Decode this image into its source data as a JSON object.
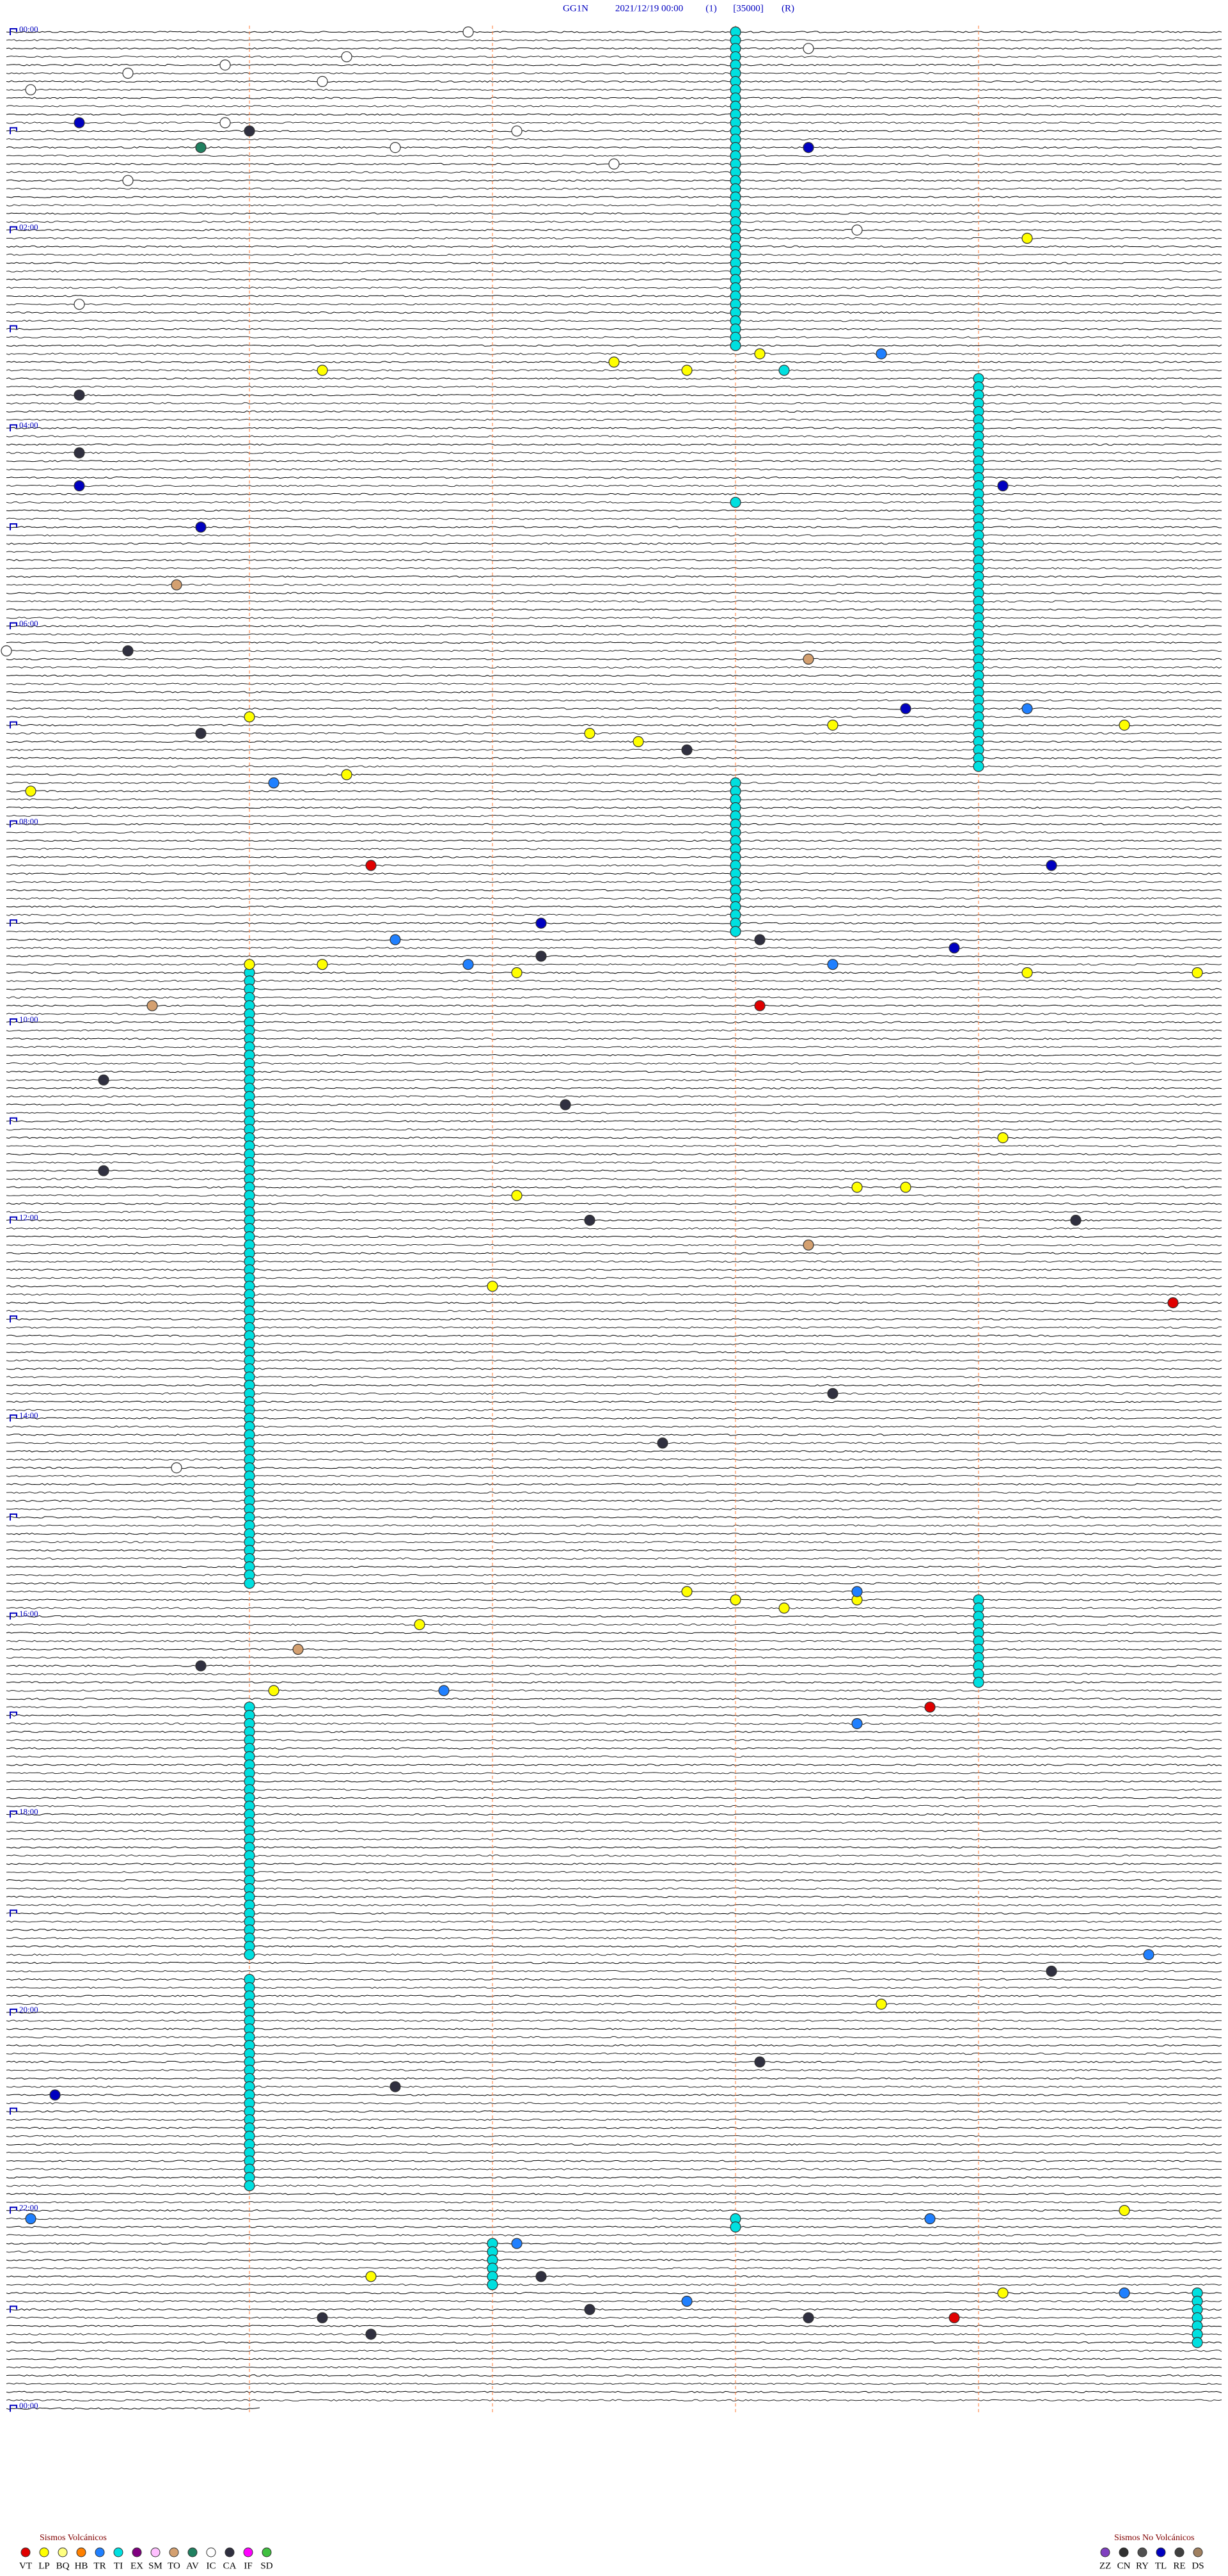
{
  "header": {
    "station": "GG1N",
    "datetime": "2021/12/19 00:00",
    "channel": "(1)",
    "scale": "[35000]",
    "mode": "(R)"
  },
  "hour_labels": [
    "00:00",
    "02:00",
    "04:00",
    "06:00",
    "08:00",
    "10:00",
    "12:00",
    "14:00",
    "16:00",
    "18:00",
    "20:00",
    "22:00",
    "00:00"
  ],
  "legend": {
    "volcanic": {
      "title": "Sismos Volcánicos",
      "items": [
        {
          "code": "VT",
          "color": "#e00000"
        },
        {
          "code": "LP",
          "color": "#ffff00"
        },
        {
          "code": "BQ",
          "color": "#ffff80"
        },
        {
          "code": "HB",
          "color": "#ff8000"
        },
        {
          "code": "TR",
          "color": "#2080ff"
        },
        {
          "code": "TI",
          "color": "#00e0e0"
        },
        {
          "code": "EX",
          "color": "#800080"
        },
        {
          "code": "SM",
          "color": "#ffc0ff"
        },
        {
          "code": "TO",
          "color": "#d4a070"
        },
        {
          "code": "AV",
          "color": "#208060"
        },
        {
          "code": "IC",
          "color": "#ffffff"
        },
        {
          "code": "CA",
          "color": "#303040"
        },
        {
          "code": "IF",
          "color": "#ff00ff"
        },
        {
          "code": "SD",
          "color": "#40c040"
        }
      ]
    },
    "non_volcanic": {
      "title": "Sismos No Volcánicos",
      "items": [
        {
          "code": "ZZ",
          "color": "#8040c0"
        },
        {
          "code": "CN",
          "color": "#303030"
        },
        {
          "code": "RY",
          "color": "#505050"
        },
        {
          "code": "TL",
          "color": "#0000c0"
        },
        {
          "code": "RE",
          "color": "#404040"
        },
        {
          "code": "DS",
          "color": "#a08060"
        }
      ]
    }
  },
  "event_runs": [
    {
      "type": "TI",
      "start": 3,
      "count": 39
    },
    {
      "type": "TI",
      "start": 214,
      "count": 48
    },
    {
      "type": "TI",
      "start": 458,
      "count": 19
    },
    {
      "type": "TI",
      "start": 571,
      "count": 75
    },
    {
      "type": "TI",
      "start": 954,
      "count": 11
    },
    {
      "type": "TI",
      "start": 1016,
      "count": 31
    },
    {
      "type": "TI",
      "start": 1181,
      "count": 26
    },
    {
      "type": "TI",
      "start": 1342,
      "count": 6
    },
    {
      "type": "TI",
      "start": 1374.9,
      "count": 7
    },
    {
      "type": "TI",
      "start": 1328,
      "count": 2
    }
  ],
  "events": [
    {
      "t": 1.9,
      "type": "IC"
    },
    {
      "t": 13.3,
      "type": "IC"
    },
    {
      "t": 16.4,
      "type": "IC"
    },
    {
      "t": 20.9,
      "type": "IC"
    },
    {
      "t": 25.5,
      "type": "IC"
    },
    {
      "t": 31.3,
      "type": "IC"
    },
    {
      "t": 35.1,
      "type": "IC"
    },
    {
      "t": 55.3,
      "type": "TL"
    },
    {
      "t": 55.9,
      "type": "IC"
    },
    {
      "t": 61.0,
      "type": "CA"
    },
    {
      "t": 70.8,
      "type": "AV"
    },
    {
      "t": 73.3,
      "type": "TL"
    },
    {
      "t": 71.6,
      "type": "IC"
    },
    {
      "t": 62.1,
      "type": "IC"
    },
    {
      "t": 82.5,
      "type": "IC"
    },
    {
      "t": 90.5,
      "type": "IC"
    },
    {
      "t": 129.2,
      "type": "LP"
    },
    {
      "t": 123.5,
      "type": "IC"
    },
    {
      "t": 165.3,
      "type": "IC"
    },
    {
      "t": 198.6,
      "type": "TR"
    },
    {
      "t": 198.1,
      "type": "LP"
    },
    {
      "t": 202.5,
      "type": "LP"
    },
    {
      "t": 207.8,
      "type": "LP"
    },
    {
      "t": 206.3,
      "type": "LP"
    },
    {
      "t": 208.2,
      "type": "TI"
    },
    {
      "t": 220.3,
      "type": "CA"
    },
    {
      "t": 255.3,
      "type": "CA"
    },
    {
      "t": 275.3,
      "type": "TL"
    },
    {
      "t": 279.1,
      "type": "TL"
    },
    {
      "t": 300.8,
      "type": "TL"
    },
    {
      "t": 288.0,
      "type": "TI"
    },
    {
      "t": 335.7,
      "type": "TO"
    },
    {
      "t": 375.5,
      "type": "CA"
    },
    {
      "t": 383.3,
      "type": "TO"
    },
    {
      "t": 375.0,
      "type": "IC"
    },
    {
      "t": 416.0,
      "type": "LP"
    },
    {
      "t": 413.7,
      "type": "TL"
    },
    {
      "t": 414.2,
      "type": "TR"
    },
    {
      "t": 423.4,
      "type": "LP"
    },
    {
      "t": 427.4,
      "type": "LP"
    },
    {
      "t": 424.6,
      "type": "LP"
    },
    {
      "t": 425.8,
      "type": "CA"
    },
    {
      "t": 432.6,
      "type": "LP"
    },
    {
      "t": 437.8,
      "type": "CA"
    },
    {
      "t": 451.4,
      "type": "LP"
    },
    {
      "t": 456.1,
      "type": "TR"
    },
    {
      "t": 460.1,
      "type": "LP"
    },
    {
      "t": 506.5,
      "type": "VT"
    },
    {
      "t": 509.3,
      "type": "TL"
    },
    {
      "t": 542.2,
      "type": "TL"
    },
    {
      "t": 551.6,
      "type": "TR"
    },
    {
      "t": 553.1,
      "type": "CA"
    },
    {
      "t": 558.9,
      "type": "TL"
    },
    {
      "t": 562.2,
      "type": "CA"
    },
    {
      "t": 566.0,
      "type": "LP"
    },
    {
      "t": 566.3,
      "type": "LP"
    },
    {
      "t": 566.9,
      "type": "TR"
    },
    {
      "t": 568.4,
      "type": "TR"
    },
    {
      "t": 572.1,
      "type": "LP"
    },
    {
      "t": 574.2,
      "type": "LP"
    },
    {
      "t": 574.9,
      "type": "LP"
    },
    {
      "t": 593.1,
      "type": "VT"
    },
    {
      "t": 590.6,
      "type": "TO"
    },
    {
      "t": 635.4,
      "type": "CA"
    },
    {
      "t": 652.3,
      "type": "CA"
    },
    {
      "t": 674.1,
      "type": "LP"
    },
    {
      "t": 690.4,
      "type": "CA"
    },
    {
      "t": 707.1,
      "type": "LP"
    },
    {
      "t": 703.5,
      "type": "LP"
    },
    {
      "t": 703.7,
      "type": "LP"
    },
    {
      "t": 722.4,
      "type": "CA"
    },
    {
      "t": 724.4,
      "type": "CA"
    },
    {
      "t": 738.3,
      "type": "TO"
    },
    {
      "t": 762.0,
      "type": "LP"
    },
    {
      "t": 774.8,
      "type": "VT"
    },
    {
      "t": 828.4,
      "type": "CA"
    },
    {
      "t": 857.7,
      "type": "CA"
    },
    {
      "t": 870.7,
      "type": "IC"
    },
    {
      "t": 947.8,
      "type": "LP"
    },
    {
      "t": 953.0,
      "type": "LP"
    },
    {
      "t": 958.2,
      "type": "LP"
    },
    {
      "t": 953.5,
      "type": "LP"
    },
    {
      "t": 948.5,
      "type": "TR"
    },
    {
      "t": 966.7,
      "type": "LP"
    },
    {
      "t": 981.2,
      "type": "TO"
    },
    {
      "t": 990.8,
      "type": "CA"
    },
    {
      "t": 1006.1,
      "type": "LP"
    },
    {
      "t": 1006.8,
      "type": "TR"
    },
    {
      "t": 1018.8,
      "type": "VT"
    },
    {
      "t": 1028.5,
      "type": "TR"
    },
    {
      "t": 1169.7,
      "type": "TR"
    },
    {
      "t": 1179.3,
      "type": "CA"
    },
    {
      "t": 1198.6,
      "type": "LP"
    },
    {
      "t": 1233.1,
      "type": "CA"
    },
    {
      "t": 1250.2,
      "type": "TL"
    },
    {
      "t": 1246.6,
      "type": "CA"
    },
    {
      "t": 1325.1,
      "type": "TR"
    },
    {
      "t": 1328.8,
      "type": "TR"
    },
    {
      "t": 1324.6,
      "type": "LP"
    },
    {
      "t": 1342.1,
      "type": "TR"
    },
    {
      "t": 1362.2,
      "type": "CA"
    },
    {
      "t": 1361.5,
      "type": "LP"
    },
    {
      "t": 1374.1,
      "type": "LP"
    },
    {
      "t": 1374.6,
      "type": "TR"
    },
    {
      "t": 1377.8,
      "type": "TR"
    },
    {
      "t": 1382.4,
      "type": "CA"
    },
    {
      "t": 1386.3,
      "type": "CA"
    },
    {
      "t": 1388.9,
      "type": "VT"
    },
    {
      "t": 1388.3,
      "type": "CA"
    },
    {
      "t": 1396.5,
      "type": "CA"
    }
  ]
}
